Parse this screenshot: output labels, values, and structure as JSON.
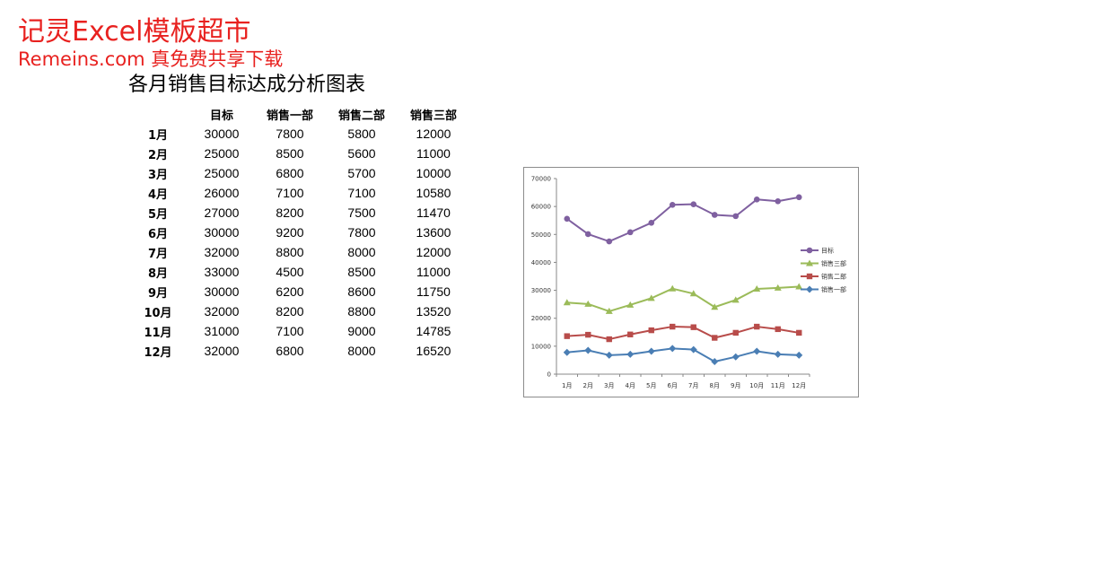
{
  "watermark": {
    "line1": "记灵Excel模板超市",
    "line2": "Remeins.com 真免费共享下载",
    "color": "#e8211f"
  },
  "title": "各月销售目标达成分析图表",
  "table": {
    "headers": [
      "",
      "目标",
      "销售一部",
      "销售二部",
      "销售三部"
    ],
    "rows": [
      [
        "1月",
        "30000",
        "7800",
        "5800",
        "12000"
      ],
      [
        "2月",
        "25000",
        "8500",
        "5600",
        "11000"
      ],
      [
        "3月",
        "25000",
        "6800",
        "5700",
        "10000"
      ],
      [
        "4月",
        "26000",
        "7100",
        "7100",
        "10580"
      ],
      [
        "5月",
        "27000",
        "8200",
        "7500",
        "11470"
      ],
      [
        "6月",
        "30000",
        "9200",
        "7800",
        "13600"
      ],
      [
        "7月",
        "32000",
        "8800",
        "8000",
        "12000"
      ],
      [
        "8月",
        "33000",
        "4500",
        "8500",
        "11000"
      ],
      [
        "9月",
        "30000",
        "6200",
        "8600",
        "11750"
      ],
      [
        "10月",
        "32000",
        "8200",
        "8800",
        "13520"
      ],
      [
        "11月",
        "31000",
        "7100",
        "9000",
        "14785"
      ],
      [
        "12月",
        "32000",
        "6800",
        "8000",
        "16520"
      ]
    ]
  },
  "chart_data": {
    "type": "line",
    "stacked": true,
    "categories": [
      "1月",
      "2月",
      "3月",
      "4月",
      "5月",
      "6月",
      "7月",
      "8月",
      "9月",
      "10月",
      "11月",
      "12月"
    ],
    "ylim": [
      0,
      70000
    ],
    "yticks": [
      "0",
      "10000",
      "20000",
      "30000",
      "40000",
      "50000",
      "60000",
      "70000"
    ],
    "legend_position": "right",
    "series": [
      {
        "name": "销售一部",
        "values": [
          7800,
          8500,
          6800,
          7100,
          8200,
          9200,
          8800,
          4500,
          6200,
          8200,
          7100,
          6800
        ],
        "color": "#4a7eb4",
        "marker": "diamond"
      },
      {
        "name": "销售二部",
        "values": [
          5800,
          5600,
          5700,
          7100,
          7500,
          7800,
          8000,
          8500,
          8600,
          8800,
          9000,
          8000
        ],
        "color": "#b84c4a",
        "marker": "square"
      },
      {
        "name": "销售三部",
        "values": [
          12000,
          11000,
          10000,
          10580,
          11470,
          13600,
          12000,
          11000,
          11750,
          13520,
          14785,
          16520
        ],
        "color": "#9bbb59",
        "marker": "triangle"
      },
      {
        "name": "目标",
        "values": [
          30000,
          25000,
          25000,
          26000,
          27000,
          30000,
          32000,
          33000,
          30000,
          32000,
          31000,
          32000
        ],
        "color": "#7f60a0",
        "marker": "circle"
      }
    ],
    "legend_order": [
      "目标",
      "销售三部",
      "销售二部",
      "销售一部"
    ]
  }
}
